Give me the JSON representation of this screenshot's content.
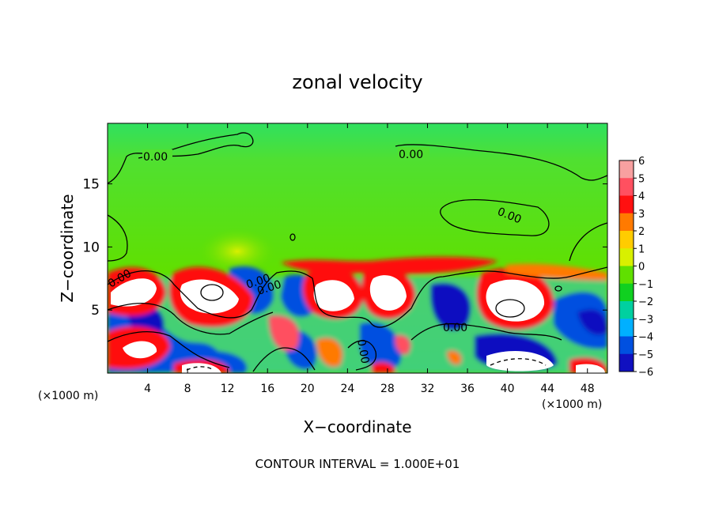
{
  "chart_data": {
    "type": "heatmap",
    "title": "zonal velocity",
    "xlabel": "X−coordinate",
    "ylabel": "Z−coordinate",
    "x_unit_left": "(×1000 m)",
    "x_unit_right": "(×1000 m)",
    "footer": "CONTOUR INTERVAL = 1.000E+01",
    "xlim": [
      0,
      50
    ],
    "ylim": [
      0,
      19.8
    ],
    "x_ticks": [
      4,
      8,
      12,
      16,
      20,
      24,
      28,
      32,
      36,
      40,
      44,
      48
    ],
    "y_ticks": [
      5,
      10,
      15
    ],
    "colorbar": {
      "ticks": [
        "6",
        "5",
        "4",
        "3",
        "2",
        "1",
        "0",
        "−1",
        "−2",
        "−3",
        "−4",
        "−5",
        "−6"
      ],
      "colors": [
        "#f8a0a0",
        "#ff5060",
        "#ff1010",
        "#ff7a00",
        "#ffcc00",
        "#d8f000",
        "#60e000",
        "#10d020",
        "#00d0a0",
        "#00b0ff",
        "#0050e0",
        "#1010c0",
        "#7000b0"
      ]
    },
    "contour_labels": [
      "0.00",
      "0.00",
      "0.00",
      "0.00",
      "0.00",
      "0.00",
      "0.00",
      "0.00"
    ],
    "features": [
      {
        "kind": "positive",
        "x": 2.5,
        "z": 6.0
      },
      {
        "kind": "positive",
        "x": 10.0,
        "z": 6.2
      },
      {
        "kind": "positive",
        "x": 23.5,
        "z": 6.2
      },
      {
        "kind": "positive",
        "x": 29.0,
        "z": 6.5
      },
      {
        "kind": "positive",
        "x": 41.0,
        "z": 5.5
      },
      {
        "kind": "positive",
        "x": 3.0,
        "z": 2.2
      },
      {
        "kind": "positive",
        "x": 8.0,
        "z": 0.4
      },
      {
        "kind": "positive",
        "x": 48.0,
        "z": 0.4
      },
      {
        "kind": "negative",
        "x": 6.0,
        "z": 4.0
      },
      {
        "kind": "negative",
        "x": 15.0,
        "z": 6.0
      },
      {
        "kind": "negative",
        "x": 20.0,
        "z": 6.0
      },
      {
        "kind": "negative",
        "x": 33.0,
        "z": 5.0
      },
      {
        "kind": "negative",
        "x": 47.0,
        "z": 4.0
      },
      {
        "kind": "negative",
        "x": 29.0,
        "z": 2.0
      },
      {
        "kind": "negative",
        "x": 41.0,
        "z": 1.2
      }
    ]
  }
}
